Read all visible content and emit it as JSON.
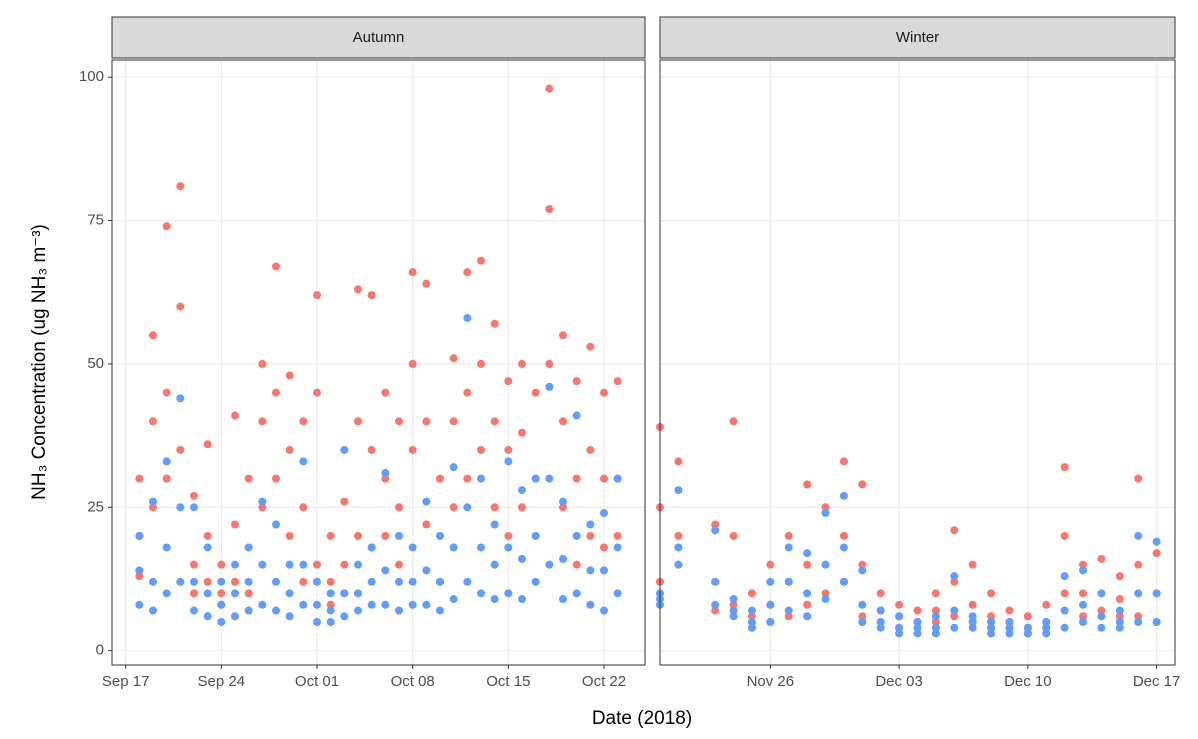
{
  "chart_data": [
    {
      "type": "scatter",
      "strip": "Autumn",
      "xlabel": "Date (2018)",
      "ylabel": "NH₃ Concentration (ug NH₃ m⁻³)",
      "xlim": [
        "2018-09-16",
        "2018-10-25"
      ],
      "xticks": [
        {
          "value": "2018-09-17",
          "label": "Sep 17"
        },
        {
          "value": "2018-09-24",
          "label": "Sep 24"
        },
        {
          "value": "2018-10-01",
          "label": "Oct 01"
        },
        {
          "value": "2018-10-08",
          "label": "Oct 08"
        },
        {
          "value": "2018-10-15",
          "label": "Oct 15"
        },
        {
          "value": "2018-10-22",
          "label": "Oct 22"
        }
      ],
      "ylim": [
        -2.5,
        103
      ],
      "yticks": [
        0,
        25,
        50,
        75,
        100
      ],
      "grid": true,
      "x": [
        "2018-09-18",
        "2018-09-18",
        "2018-09-18",
        "2018-09-19",
        "2018-09-19",
        "2018-09-19",
        "2018-09-20",
        "2018-09-20",
        "2018-09-20",
        "2018-09-21",
        "2018-09-21",
        "2018-09-21",
        "2018-09-22",
        "2018-09-22",
        "2018-09-22",
        "2018-09-23",
        "2018-09-23",
        "2018-09-23",
        "2018-09-24",
        "2018-09-24",
        "2018-09-24",
        "2018-09-25",
        "2018-09-25",
        "2018-09-25",
        "2018-09-26",
        "2018-09-26",
        "2018-09-26",
        "2018-09-27",
        "2018-09-27",
        "2018-09-27",
        "2018-09-28",
        "2018-09-28",
        "2018-09-28",
        "2018-09-29",
        "2018-09-29",
        "2018-09-29",
        "2018-09-30",
        "2018-09-30",
        "2018-09-30",
        "2018-10-01",
        "2018-10-01",
        "2018-10-01",
        "2018-10-02",
        "2018-10-02",
        "2018-10-02",
        "2018-10-03",
        "2018-10-03",
        "2018-10-03",
        "2018-10-04",
        "2018-10-04",
        "2018-10-04",
        "2018-10-05",
        "2018-10-05",
        "2018-10-05",
        "2018-10-06",
        "2018-10-06",
        "2018-10-06",
        "2018-10-07",
        "2018-10-07",
        "2018-10-07",
        "2018-10-08",
        "2018-10-08",
        "2018-10-08",
        "2018-10-09",
        "2018-10-09",
        "2018-10-09",
        "2018-10-10",
        "2018-10-10",
        "2018-10-10",
        "2018-10-11",
        "2018-10-11",
        "2018-10-11",
        "2018-10-12",
        "2018-10-12",
        "2018-10-12",
        "2018-10-13",
        "2018-10-13",
        "2018-10-13",
        "2018-10-14",
        "2018-10-14",
        "2018-10-14",
        "2018-10-15",
        "2018-10-15",
        "2018-10-15",
        "2018-10-16",
        "2018-10-16",
        "2018-10-16",
        "2018-10-17",
        "2018-10-17",
        "2018-10-17",
        "2018-10-18",
        "2018-10-18",
        "2018-10-18",
        "2018-10-19",
        "2018-10-19",
        "2018-10-19",
        "2018-10-20",
        "2018-10-20",
        "2018-10-20",
        "2018-10-21",
        "2018-10-21",
        "2018-10-21",
        "2018-10-22",
        "2018-10-22",
        "2018-10-22",
        "2018-10-23",
        "2018-10-23",
        "2018-10-23"
      ],
      "series": [
        {
          "color": "#F8766D",
          "values": [
            13,
            30,
            20,
            55,
            40,
            25,
            74,
            45,
            30,
            81,
            60,
            35,
            27,
            15,
            10,
            20,
            12,
            36,
            8,
            15,
            10,
            41,
            22,
            12,
            30,
            18,
            10,
            50,
            40,
            25,
            67,
            45,
            30,
            48,
            35,
            20,
            40,
            25,
            12,
            62,
            45,
            15,
            20,
            12,
            8,
            26,
            15,
            10,
            63,
            40,
            20,
            62,
            35,
            18,
            45,
            30,
            20,
            40,
            25,
            15,
            66,
            50,
            35,
            64,
            40,
            22,
            30,
            20,
            12,
            51,
            40,
            25,
            66,
            45,
            30,
            68,
            50,
            35,
            57,
            40,
            25,
            47,
            35,
            20,
            50,
            38,
            25,
            45,
            30,
            20,
            98,
            77,
            50,
            55,
            40,
            25,
            47,
            30,
            15,
            53,
            35,
            20,
            45,
            30,
            18,
            47,
            30,
            20
          ]
        },
        {
          "color": "#619CFF",
          "values": [
            20,
            14,
            8,
            26,
            12,
            7,
            33,
            18,
            10,
            44,
            25,
            12,
            25,
            12,
            7,
            18,
            10,
            6,
            12,
            8,
            5,
            15,
            10,
            6,
            18,
            12,
            7,
            26,
            15,
            8,
            22,
            12,
            7,
            15,
            10,
            6,
            33,
            15,
            8,
            12,
            8,
            5,
            10,
            7,
            5,
            35,
            10,
            6,
            15,
            10,
            7,
            18,
            12,
            8,
            31,
            14,
            8,
            20,
            12,
            7,
            18,
            12,
            8,
            26,
            14,
            8,
            20,
            12,
            7,
            32,
            18,
            9,
            58,
            25,
            12,
            30,
            18,
            10,
            22,
            15,
            9,
            33,
            18,
            10,
            28,
            16,
            9,
            30,
            20,
            12,
            46,
            30,
            15,
            26,
            16,
            9,
            41,
            20,
            10,
            22,
            14,
            8,
            24,
            14,
            7,
            30,
            18,
            10
          ]
        }
      ]
    },
    {
      "type": "scatter",
      "strip": "Winter",
      "xlim": [
        "2018-11-20",
        "2018-12-18"
      ],
      "xticks": [
        {
          "value": "2018-11-26",
          "label": "Nov 26"
        },
        {
          "value": "2018-12-03",
          "label": "Dec 03"
        },
        {
          "value": "2018-12-10",
          "label": "Dec 10"
        },
        {
          "value": "2018-12-17",
          "label": "Dec 17"
        }
      ],
      "ylim": [
        -2.5,
        103
      ],
      "yticks": [
        0,
        25,
        50,
        75,
        100
      ],
      "grid": true,
      "x": [
        "2018-11-20",
        "2018-11-20",
        "2018-11-20",
        "2018-11-21",
        "2018-11-21",
        "2018-11-21",
        "2018-11-23",
        "2018-11-23",
        "2018-11-23",
        "2018-11-24",
        "2018-11-24",
        "2018-11-24",
        "2018-11-25",
        "2018-11-25",
        "2018-11-25",
        "2018-11-26",
        "2018-11-26",
        "2018-11-26",
        "2018-11-27",
        "2018-11-27",
        "2018-11-27",
        "2018-11-28",
        "2018-11-28",
        "2018-11-28",
        "2018-11-29",
        "2018-11-29",
        "2018-11-29",
        "2018-11-30",
        "2018-11-30",
        "2018-11-30",
        "2018-12-01",
        "2018-12-01",
        "2018-12-01",
        "2018-12-02",
        "2018-12-02",
        "2018-12-02",
        "2018-12-03",
        "2018-12-03",
        "2018-12-03",
        "2018-12-04",
        "2018-12-04",
        "2018-12-04",
        "2018-12-05",
        "2018-12-05",
        "2018-12-05",
        "2018-12-06",
        "2018-12-06",
        "2018-12-06",
        "2018-12-07",
        "2018-12-07",
        "2018-12-07",
        "2018-12-08",
        "2018-12-08",
        "2018-12-08",
        "2018-12-09",
        "2018-12-09",
        "2018-12-09",
        "2018-12-10",
        "2018-12-10",
        "2018-12-10",
        "2018-12-11",
        "2018-12-11",
        "2018-12-11",
        "2018-12-12",
        "2018-12-12",
        "2018-12-12",
        "2018-12-13",
        "2018-12-13",
        "2018-12-13",
        "2018-12-14",
        "2018-12-14",
        "2018-12-14",
        "2018-12-15",
        "2018-12-15",
        "2018-12-15",
        "2018-12-16",
        "2018-12-16",
        "2018-12-16",
        "2018-12-17",
        "2018-12-17",
        "2018-12-17"
      ],
      "series": [
        {
          "color": "#F8766D",
          "values": [
            39,
            25,
            12,
            33,
            20,
            15,
            22,
            12,
            7,
            40,
            20,
            8,
            10,
            6,
            4,
            15,
            8,
            5,
            20,
            12,
            6,
            29,
            15,
            8,
            25,
            15,
            10,
            33,
            20,
            12,
            29,
            15,
            6,
            10,
            7,
            5,
            8,
            6,
            4,
            7,
            5,
            4,
            10,
            7,
            5,
            21,
            12,
            6,
            15,
            8,
            5,
            10,
            6,
            4,
            7,
            5,
            4,
            6,
            4,
            3,
            8,
            5,
            4,
            32,
            20,
            10,
            15,
            10,
            6,
            16,
            10,
            7,
            13,
            9,
            6,
            30,
            15,
            6,
            17,
            10,
            5
          ]
        },
        {
          "color": "#619CFF",
          "values": [
            10,
            8,
            9,
            28,
            18,
            15,
            21,
            12,
            8,
            9,
            7,
            6,
            7,
            5,
            4,
            12,
            8,
            5,
            18,
            12,
            7,
            17,
            10,
            6,
            24,
            15,
            9,
            27,
            18,
            12,
            14,
            8,
            5,
            7,
            5,
            4,
            6,
            4,
            3,
            5,
            4,
            3,
            6,
            4,
            3,
            13,
            7,
            4,
            6,
            5,
            4,
            5,
            4,
            3,
            5,
            4,
            3,
            4,
            3,
            3,
            5,
            4,
            3,
            13,
            7,
            4,
            14,
            8,
            5,
            10,
            6,
            4,
            7,
            5,
            4,
            20,
            10,
            5,
            19,
            10,
            5
          ]
        }
      ]
    }
  ]
}
